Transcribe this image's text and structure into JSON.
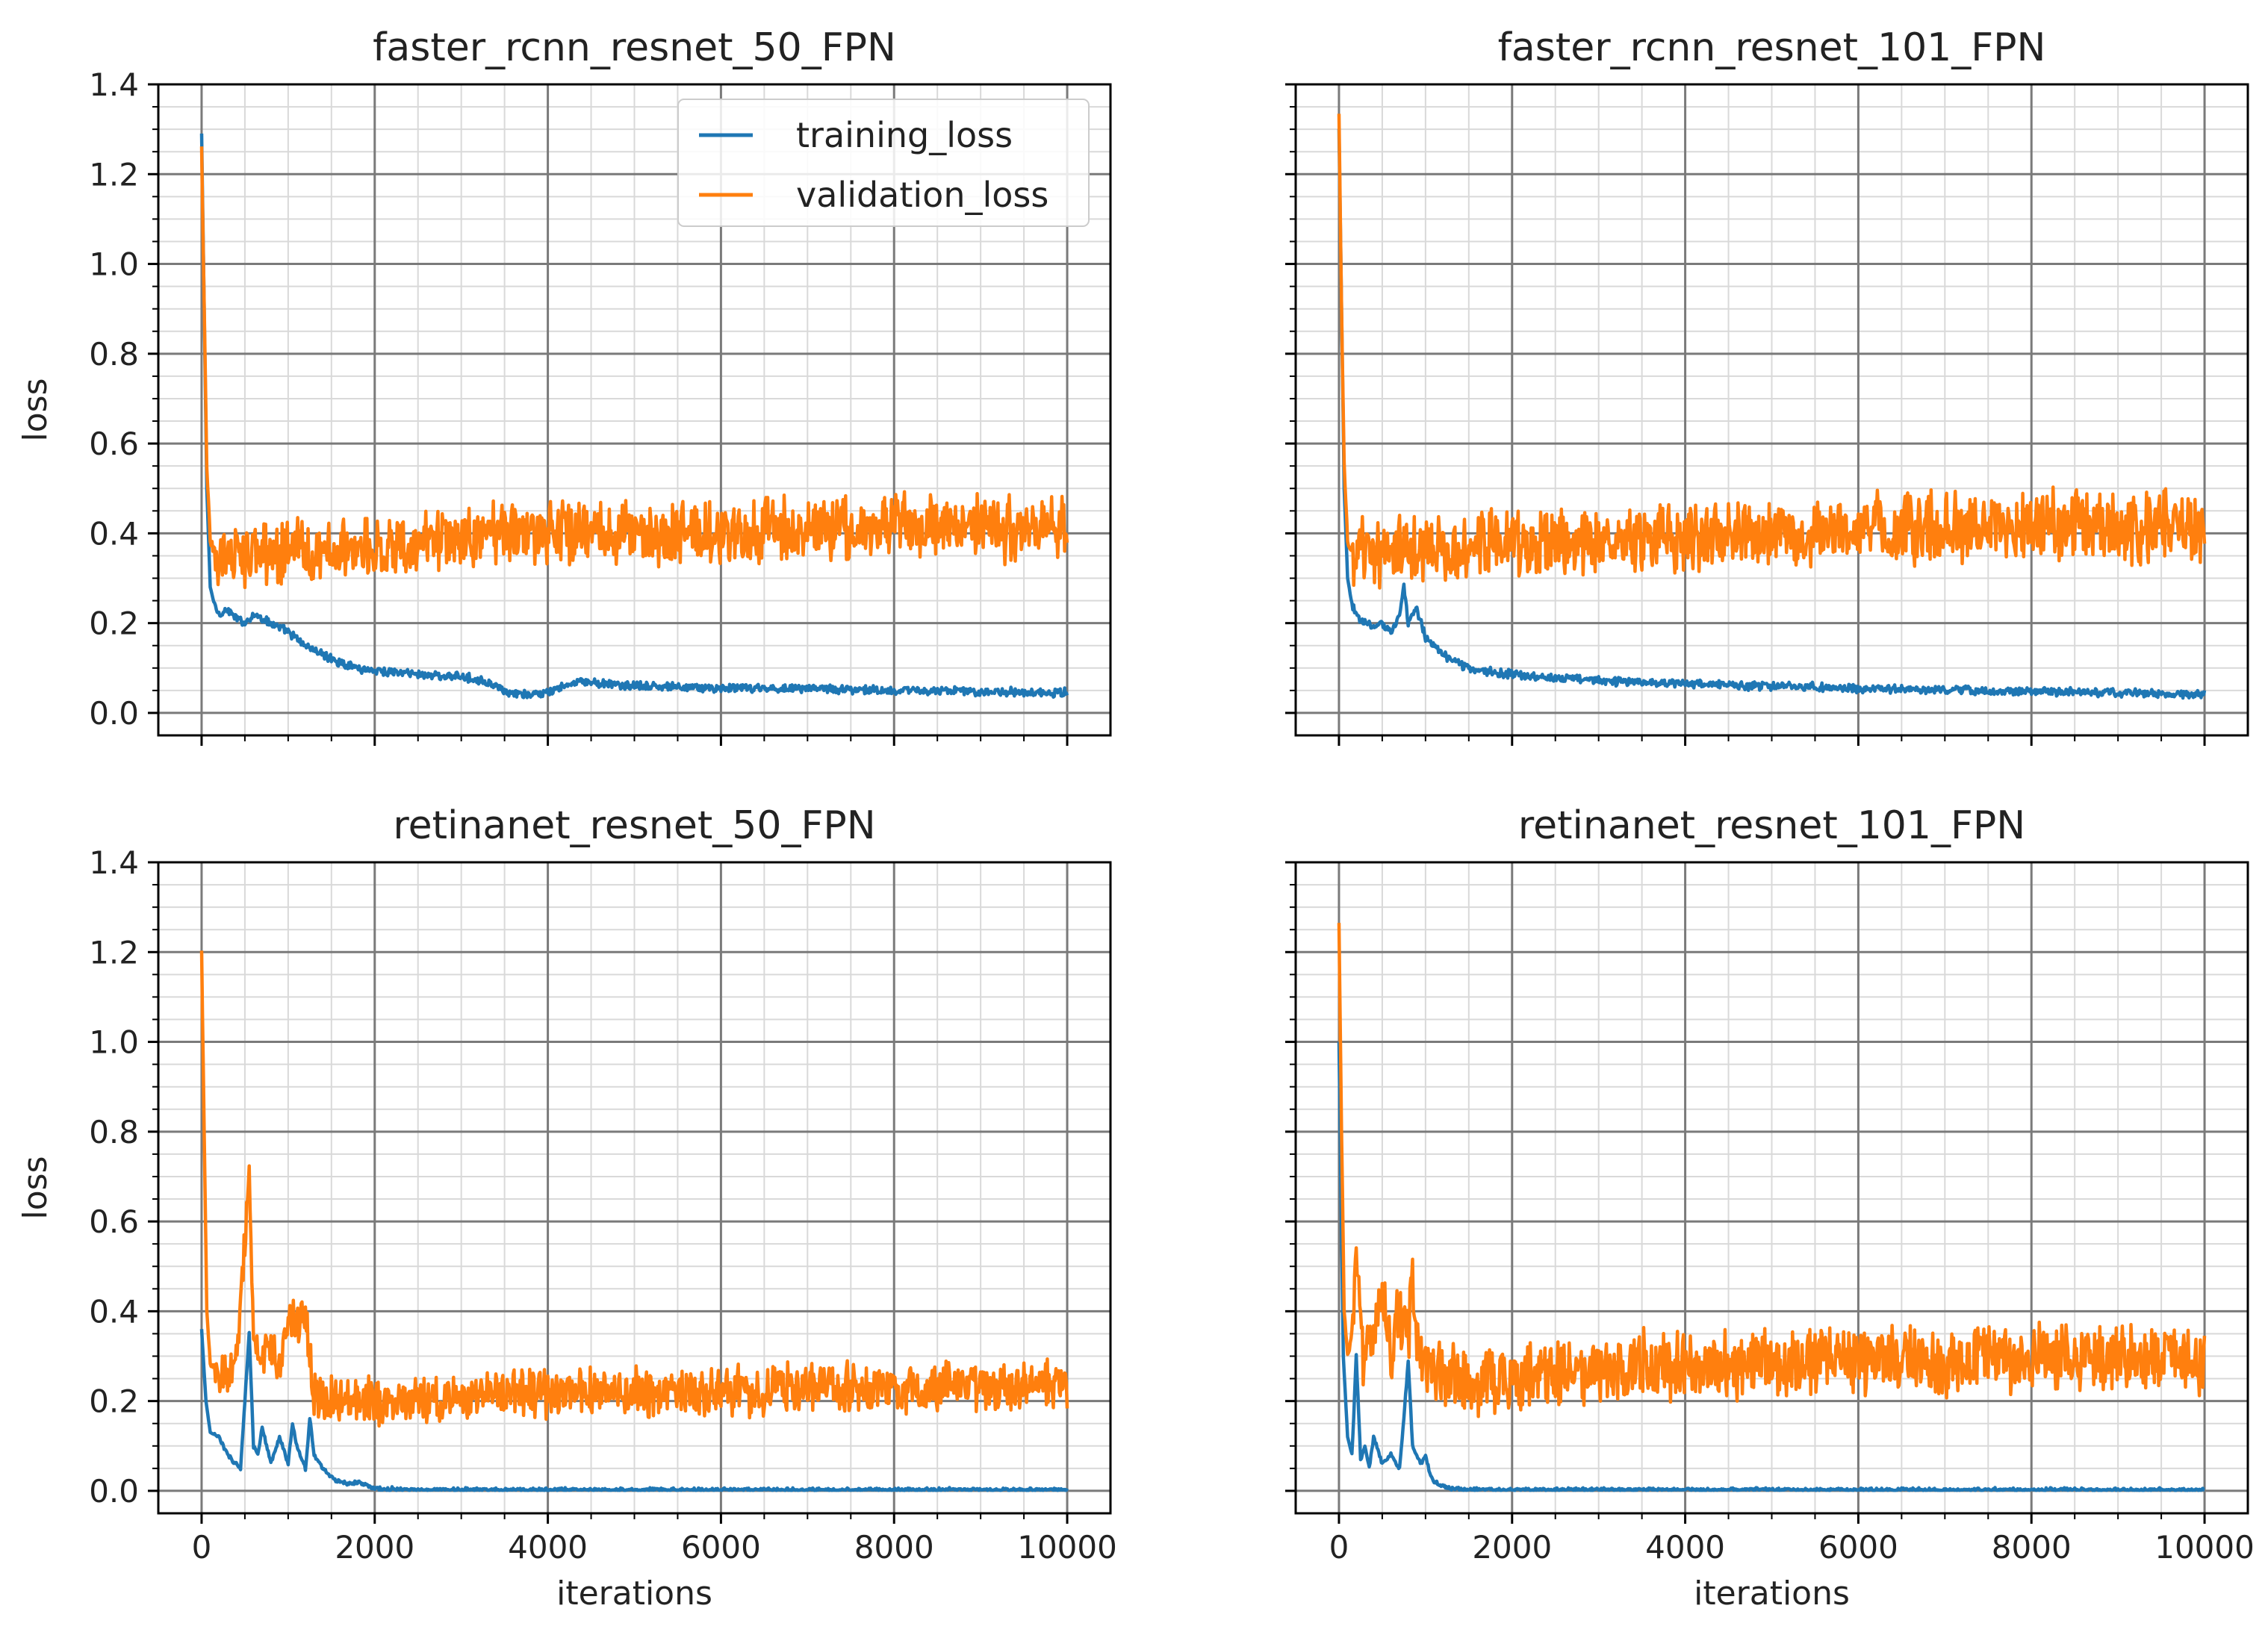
{
  "chart_data": [
    {
      "type": "line",
      "title": "faster_rcnn_resnet_50_FPN",
      "xlabel": "",
      "ylabel": "loss",
      "xlim": [
        -500,
        10500
      ],
      "ylim": [
        -0.05,
        1.4
      ],
      "xticks": [
        "0",
        "2000",
        "4000",
        "6000",
        "8000",
        "10000"
      ],
      "yticks": [
        "0.0",
        "0.2",
        "0.4",
        "0.6",
        "0.8",
        "1.0",
        "1.2",
        "1.4"
      ],
      "show_xtick_labels": false,
      "show_ytick_labels": true,
      "grid": true,
      "legend": "upper-right",
      "series": [
        {
          "name": "training_loss",
          "color": "#1f77b4",
          "noise": 0.008,
          "x": [
            0,
            30,
            60,
            100,
            150,
            200,
            300,
            400,
            500,
            600,
            700,
            800,
            900,
            1000,
            1200,
            1500,
            1800,
            2000,
            2300,
            2600,
            3000,
            3200,
            3400,
            3500,
            3700,
            4000,
            4200,
            4400,
            4600,
            5000,
            6000,
            7000,
            8000,
            9000,
            10000
          ],
          "y": [
            1.29,
            0.9,
            0.5,
            0.28,
            0.24,
            0.22,
            0.23,
            0.21,
            0.2,
            0.22,
            0.21,
            0.2,
            0.19,
            0.18,
            0.15,
            0.12,
            0.1,
            0.095,
            0.09,
            0.085,
            0.08,
            0.075,
            0.06,
            0.045,
            0.04,
            0.045,
            0.06,
            0.07,
            0.065,
            0.06,
            0.055,
            0.055,
            0.05,
            0.048,
            0.045
          ]
        },
        {
          "name": "validation_loss",
          "color": "#ff7f0e",
          "noise": 0.06,
          "x": [
            0,
            30,
            60,
            100,
            150,
            200,
            500,
            1000,
            2000,
            3000,
            4000,
            5000,
            6000,
            7000,
            8000,
            9000,
            10000
          ],
          "y": [
            1.26,
            0.9,
            0.55,
            0.38,
            0.36,
            0.35,
            0.35,
            0.36,
            0.37,
            0.39,
            0.4,
            0.4,
            0.4,
            0.41,
            0.42,
            0.41,
            0.42
          ]
        }
      ]
    },
    {
      "type": "line",
      "title": "faster_rcnn_resnet_101_FPN",
      "xlabel": "",
      "ylabel": "",
      "xlim": [
        -500,
        10500
      ],
      "ylim": [
        -0.05,
        1.4
      ],
      "xticks": [
        "0",
        "2000",
        "4000",
        "6000",
        "8000",
        "10000"
      ],
      "yticks": [
        "0.0",
        "0.2",
        "0.4",
        "0.6",
        "0.8",
        "1.0",
        "1.2",
        "1.4"
      ],
      "show_xtick_labels": false,
      "show_ytick_labels": false,
      "grid": true,
      "legend": "none",
      "series": [
        {
          "name": "training_loss",
          "color": "#1f77b4",
          "noise": 0.008,
          "x": [
            0,
            30,
            60,
            100,
            150,
            200,
            300,
            400,
            500,
            600,
            700,
            750,
            800,
            900,
            1000,
            1200,
            1500,
            1800,
            2000,
            2500,
            3000,
            4000,
            5000,
            6000,
            7000,
            8000,
            9000,
            10000
          ],
          "y": [
            1.3,
            0.9,
            0.5,
            0.3,
            0.24,
            0.22,
            0.2,
            0.19,
            0.2,
            0.18,
            0.22,
            0.28,
            0.2,
            0.23,
            0.17,
            0.13,
            0.1,
            0.09,
            0.085,
            0.08,
            0.072,
            0.065,
            0.06,
            0.055,
            0.05,
            0.048,
            0.045,
            0.04
          ]
        },
        {
          "name": "validation_loss",
          "color": "#ff7f0e",
          "noise": 0.065,
          "x": [
            0,
            30,
            60,
            100,
            150,
            200,
            500,
            1000,
            2000,
            3000,
            4000,
            5000,
            6000,
            7000,
            8000,
            9000,
            10000
          ],
          "y": [
            1.33,
            0.9,
            0.55,
            0.38,
            0.36,
            0.35,
            0.35,
            0.36,
            0.38,
            0.38,
            0.39,
            0.4,
            0.41,
            0.41,
            0.42,
            0.41,
            0.42
          ]
        }
      ]
    },
    {
      "type": "line",
      "title": "retinanet_resnet_50_FPN",
      "xlabel": "iterations",
      "ylabel": "loss",
      "xlim": [
        -500,
        10500
      ],
      "ylim": [
        -0.05,
        1.4
      ],
      "xticks": [
        "0",
        "2000",
        "4000",
        "6000",
        "8000",
        "10000"
      ],
      "yticks": [
        "0.0",
        "0.2",
        "0.4",
        "0.6",
        "0.8",
        "1.0",
        "1.2",
        "1.4"
      ],
      "show_xtick_labels": true,
      "show_ytick_labels": true,
      "grid": true,
      "legend": "none",
      "series": [
        {
          "name": "training_loss",
          "color": "#1f77b4",
          "noise": 0.004,
          "x": [
            0,
            50,
            100,
            200,
            300,
            400,
            450,
            500,
            550,
            600,
            650,
            700,
            800,
            900,
            1000,
            1050,
            1100,
            1200,
            1250,
            1300,
            1400,
            1500,
            1600,
            1700,
            1800,
            2000,
            2500,
            10000
          ],
          "y": [
            0.36,
            0.2,
            0.13,
            0.12,
            0.08,
            0.06,
            0.05,
            0.2,
            0.35,
            0.1,
            0.08,
            0.14,
            0.06,
            0.12,
            0.06,
            0.15,
            0.1,
            0.05,
            0.16,
            0.08,
            0.05,
            0.03,
            0.02,
            0.015,
            0.02,
            0.005,
            0.002,
            0.002
          ]
        },
        {
          "name": "validation_loss",
          "color": "#ff7f0e",
          "noise": 0.045,
          "x": [
            0,
            30,
            60,
            100,
            200,
            300,
            400,
            500,
            550,
            600,
            700,
            800,
            900,
            1000,
            1100,
            1200,
            1300,
            1400,
            1600,
            2000,
            3000,
            4000,
            5000,
            6000,
            7000,
            8000,
            9000,
            10000
          ],
          "y": [
            1.2,
            0.8,
            0.4,
            0.28,
            0.27,
            0.25,
            0.3,
            0.55,
            0.69,
            0.35,
            0.3,
            0.32,
            0.28,
            0.38,
            0.35,
            0.4,
            0.22,
            0.2,
            0.21,
            0.2,
            0.21,
            0.22,
            0.22,
            0.22,
            0.23,
            0.23,
            0.23,
            0.24
          ]
        }
      ]
    },
    {
      "type": "line",
      "title": "retinanet_resnet_101_FPN",
      "xlabel": "iterations",
      "ylabel": "",
      "xlim": [
        -500,
        10500
      ],
      "ylim": [
        -0.05,
        1.4
      ],
      "xticks": [
        "0",
        "2000",
        "4000",
        "6000",
        "8000",
        "10000"
      ],
      "yticks": [
        "0.0",
        "0.2",
        "0.4",
        "0.6",
        "0.8",
        "1.0",
        "1.2",
        "1.4"
      ],
      "show_xtick_labels": true,
      "show_ytick_labels": false,
      "grid": true,
      "legend": "none",
      "series": [
        {
          "name": "training_loss",
          "color": "#1f77b4",
          "noise": 0.004,
          "x": [
            0,
            50,
            100,
            150,
            200,
            250,
            300,
            350,
            400,
            500,
            600,
            700,
            750,
            800,
            850,
            900,
            950,
            1000,
            1050,
            1100,
            1200,
            1300,
            1500,
            10000
          ],
          "y": [
            1.0,
            0.3,
            0.12,
            0.08,
            0.3,
            0.07,
            0.1,
            0.05,
            0.12,
            0.06,
            0.08,
            0.05,
            0.16,
            0.29,
            0.1,
            0.08,
            0.06,
            0.08,
            0.04,
            0.02,
            0.01,
            0.005,
            0.002,
            0.002
          ]
        },
        {
          "name": "validation_loss",
          "color": "#ff7f0e",
          "noise": 0.065,
          "x": [
            0,
            30,
            60,
            100,
            150,
            200,
            250,
            300,
            400,
            500,
            600,
            700,
            800,
            850,
            900,
            1000,
            1200,
            1500,
            2000,
            3000,
            4000,
            5000,
            6000,
            7000,
            8000,
            9000,
            10000
          ],
          "y": [
            1.26,
            0.8,
            0.4,
            0.3,
            0.35,
            0.55,
            0.35,
            0.28,
            0.35,
            0.45,
            0.3,
            0.4,
            0.35,
            0.5,
            0.3,
            0.28,
            0.25,
            0.24,
            0.25,
            0.27,
            0.28,
            0.28,
            0.3,
            0.29,
            0.3,
            0.29,
            0.3
          ]
        }
      ]
    }
  ]
}
